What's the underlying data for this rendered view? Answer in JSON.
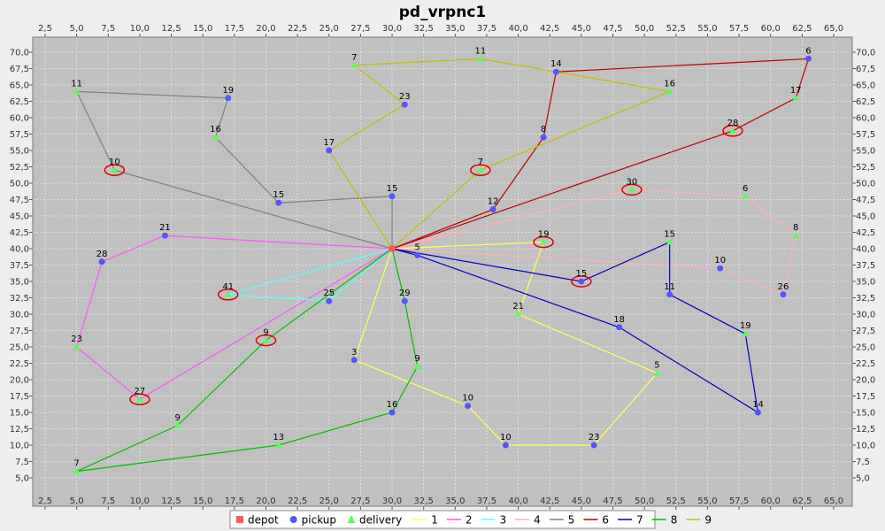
{
  "chart_data": {
    "type": "scatter",
    "title": "pd_vrpnc1",
    "xlim": [
      2.5,
      65.0
    ],
    "ylim": [
      5.0,
      70.0
    ],
    "x_ticks": [
      "2,5",
      "5,0",
      "7,5",
      "10,0",
      "12,5",
      "15,0",
      "17,5",
      "20,0",
      "22,5",
      "25,0",
      "27,5",
      "30,0",
      "32,5",
      "35,0",
      "37,5",
      "40,0",
      "42,5",
      "45,0",
      "47,5",
      "50,0",
      "52,5",
      "55,0",
      "57,5",
      "60,0",
      "62,5",
      "65,0"
    ],
    "y_ticks": [
      "5,0",
      "7,5",
      "10,0",
      "12,5",
      "15,0",
      "17,5",
      "20,0",
      "22,5",
      "25,0",
      "27,5",
      "30,0",
      "32,5",
      "35,0",
      "37,5",
      "40,0",
      "42,5",
      "45,0",
      "47,5",
      "50,0",
      "52,5",
      "55,0",
      "57,5",
      "60,0",
      "62,5",
      "65,0",
      "67,5",
      "70,0"
    ],
    "grid": true,
    "legend_position": "bottom",
    "legend": {
      "markers": [
        {
          "label": "depot",
          "shape": "square",
          "color": "#ff5555"
        },
        {
          "label": "pickup",
          "shape": "circle",
          "color": "#5555ff"
        },
        {
          "label": "delivery",
          "shape": "triangle",
          "color": "#55ff55"
        }
      ]
    },
    "depot": {
      "x": 30,
      "y": 40
    },
    "points": [
      {
        "x": 37,
        "y": 52,
        "label": "7",
        "kind": "delivery",
        "highlight": true
      },
      {
        "x": 49,
        "y": 49,
        "label": "30",
        "kind": "delivery",
        "highlight": true
      },
      {
        "x": 52,
        "y": 64,
        "label": "16",
        "kind": "delivery"
      },
      {
        "x": 20,
        "y": 26,
        "label": "9",
        "kind": "delivery",
        "highlight": true
      },
      {
        "x": 40,
        "y": 30,
        "label": "21",
        "kind": "delivery"
      },
      {
        "x": 21,
        "y": 47,
        "label": "15",
        "kind": "pickup"
      },
      {
        "x": 17,
        "y": 63,
        "label": "19",
        "kind": "pickup"
      },
      {
        "x": 31,
        "y": 62,
        "label": "23",
        "kind": "pickup"
      },
      {
        "x": 52,
        "y": 33,
        "label": "11",
        "kind": "pickup"
      },
      {
        "x": 51,
        "y": 21,
        "label": "5",
        "kind": "delivery"
      },
      {
        "x": 42,
        "y": 41,
        "label": "19",
        "kind": "delivery",
        "highlight": true
      },
      {
        "x": 31,
        "y": 32,
        "label": "29",
        "kind": "pickup"
      },
      {
        "x": 5,
        "y": 25,
        "label": "23",
        "kind": "delivery"
      },
      {
        "x": 12,
        "y": 42,
        "label": "21",
        "kind": "pickup"
      },
      {
        "x": 36,
        "y": 16,
        "label": "10",
        "kind": "pickup"
      },
      {
        "x": 52,
        "y": 41,
        "label": "15",
        "kind": "delivery"
      },
      {
        "x": 27,
        "y": 23,
        "label": "3",
        "kind": "pickup"
      },
      {
        "x": 17,
        "y": 33,
        "label": "41",
        "kind": "delivery",
        "highlight": true
      },
      {
        "x": 13,
        "y": 13,
        "label": "9",
        "kind": "delivery"
      },
      {
        "x": 57,
        "y": 58,
        "label": "28",
        "kind": "delivery",
        "highlight": true
      },
      {
        "x": 62,
        "y": 42,
        "label": "8",
        "kind": "delivery"
      },
      {
        "x": 42,
        "y": 57,
        "label": "8",
        "kind": "pickup"
      },
      {
        "x": 16,
        "y": 57,
        "label": "16",
        "kind": "delivery"
      },
      {
        "x": 8,
        "y": 52,
        "label": "10",
        "kind": "delivery",
        "highlight": true
      },
      {
        "x": 7,
        "y": 38,
        "label": "28",
        "kind": "pickup"
      },
      {
        "x": 27,
        "y": 68,
        "label": "7",
        "kind": "delivery"
      },
      {
        "x": 30,
        "y": 48,
        "label": "15",
        "kind": "pickup"
      },
      {
        "x": 43,
        "y": 67,
        "label": "14",
        "kind": "pickup"
      },
      {
        "x": 58,
        "y": 48,
        "label": "6",
        "kind": "delivery"
      },
      {
        "x": 58,
        "y": 27,
        "label": "19",
        "kind": "delivery"
      },
      {
        "x": 37,
        "y": 69,
        "label": "11",
        "kind": "delivery"
      },
      {
        "x": 38,
        "y": 46,
        "label": "12",
        "kind": "pickup"
      },
      {
        "x": 61,
        "y": 33,
        "label": "26",
        "kind": "pickup"
      },
      {
        "x": 62,
        "y": 63,
        "label": "17",
        "kind": "delivery"
      },
      {
        "x": 63,
        "y": 69,
        "label": "6",
        "kind": "pickup"
      },
      {
        "x": 45,
        "y": 35,
        "label": "15",
        "kind": "pickup",
        "highlight": true
      },
      {
        "x": 5,
        "y": 6,
        "label": "7",
        "kind": "delivery"
      },
      {
        "x": 10,
        "y": 17,
        "label": "27",
        "kind": "delivery",
        "highlight": true
      },
      {
        "x": 21,
        "y": 10,
        "label": "13",
        "kind": "delivery"
      },
      {
        "x": 5,
        "y": 64,
        "label": "11",
        "kind": "delivery"
      },
      {
        "x": 30,
        "y": 15,
        "label": "16",
        "kind": "pickup"
      },
      {
        "x": 39,
        "y": 10,
        "label": "10",
        "kind": "pickup"
      },
      {
        "x": 32,
        "y": 39,
        "label": "5",
        "kind": "pickup"
      },
      {
        "x": 25,
        "y": 32,
        "label": "25",
        "kind": "pickup"
      },
      {
        "x": 25,
        "y": 55,
        "label": "17",
        "kind": "pickup"
      },
      {
        "x": 48,
        "y": 28,
        "label": "18",
        "kind": "pickup"
      },
      {
        "x": 56,
        "y": 37,
        "label": "10",
        "kind": "pickup"
      },
      {
        "x": 32,
        "y": 22,
        "label": "9",
        "kind": "delivery"
      },
      {
        "x": 46,
        "y": 10,
        "label": "23",
        "kind": "pickup"
      },
      {
        "x": 59,
        "y": 15,
        "label": "14",
        "kind": "pickup"
      }
    ],
    "series": [
      {
        "name": "1",
        "color": "#ffff55",
        "x": [
          30,
          42,
          40,
          51,
          46,
          39,
          36,
          27,
          30
        ],
        "y": [
          40,
          41,
          30,
          21,
          10,
          10,
          16,
          23,
          40
        ]
      },
      {
        "name": "2",
        "color": "#ff55ff",
        "x": [
          30,
          12,
          7,
          5,
          10,
          30
        ],
        "y": [
          40,
          42,
          38,
          25,
          17,
          40
        ]
      },
      {
        "name": "3",
        "color": "#55ffff",
        "x": [
          30,
          17,
          25,
          30
        ],
        "y": [
          40,
          33,
          32,
          40
        ]
      },
      {
        "name": "4",
        "color": "#ffafaf",
        "x": [
          30,
          49,
          58,
          62,
          61,
          56,
          30
        ],
        "y": [
          40,
          49,
          48,
          42,
          33,
          37,
          40
        ]
      },
      {
        "name": "5",
        "color": "#808080",
        "x": [
          30,
          30,
          21,
          16,
          17,
          5,
          8,
          30
        ],
        "y": [
          40,
          48,
          47,
          57,
          63,
          64,
          52,
          40
        ]
      },
      {
        "name": "6",
        "color": "#c00000",
        "x": [
          30,
          38,
          42,
          43,
          63,
          62,
          57,
          30
        ],
        "y": [
          40,
          46,
          57,
          67,
          69,
          63,
          58,
          40
        ]
      },
      {
        "name": "7",
        "color": "#0000c0",
        "x": [
          30,
          45,
          52,
          52,
          58,
          59,
          48,
          32,
          30
        ],
        "y": [
          40,
          35,
          41,
          33,
          27,
          15,
          28,
          39,
          40
        ]
      },
      {
        "name": "8",
        "color": "#00c000",
        "x": [
          30,
          31,
          32,
          30,
          21,
          5,
          13,
          20,
          30
        ],
        "y": [
          40,
          32,
          22,
          15,
          10,
          6,
          13,
          26,
          40
        ]
      },
      {
        "name": "9",
        "color": "#c0c000",
        "x": [
          30,
          37,
          52,
          43,
          37,
          27,
          31,
          25,
          30
        ],
        "y": [
          40,
          52,
          64,
          67,
          69,
          68,
          62,
          55,
          40
        ]
      }
    ]
  }
}
